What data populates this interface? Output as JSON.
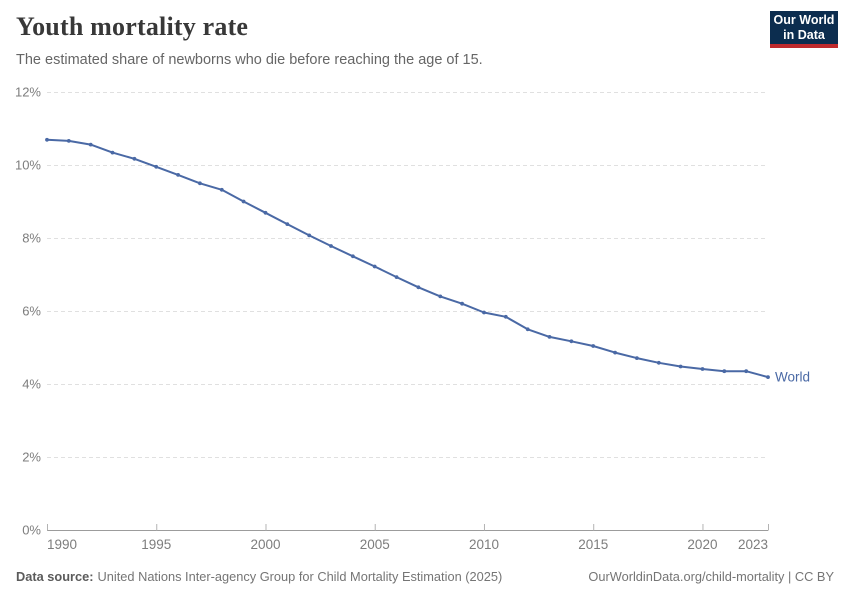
{
  "header": {
    "title": "Youth mortality rate",
    "subtitle": "The estimated share of newborns who die before reaching the age of 15."
  },
  "logo": {
    "line1": "Our World",
    "line2": "in Data",
    "bg_color": "#0c2d4f",
    "accent_color": "#bf2a2d"
  },
  "chart_data": {
    "type": "line",
    "title": "Youth mortality rate",
    "subtitle": "The estimated share of newborns who die before reaching the age of 15.",
    "x": [
      1990,
      1991,
      1992,
      1993,
      1994,
      1995,
      1996,
      1997,
      1998,
      1999,
      2000,
      2001,
      2002,
      2003,
      2004,
      2005,
      2006,
      2007,
      2008,
      2009,
      2010,
      2011,
      2012,
      2013,
      2014,
      2015,
      2016,
      2017,
      2018,
      2019,
      2020,
      2021,
      2022,
      2023
    ],
    "series": [
      {
        "name": "World",
        "color": "#4a69a5",
        "values": [
          10.69,
          10.66,
          10.56,
          10.34,
          10.17,
          9.95,
          9.73,
          9.5,
          9.32,
          9.0,
          8.69,
          8.38,
          8.07,
          7.78,
          7.5,
          7.22,
          6.93,
          6.65,
          6.4,
          6.2,
          5.96,
          5.84,
          5.5,
          5.29,
          5.17,
          5.04,
          4.86,
          4.71,
          4.58,
          4.48,
          4.41,
          4.35,
          4.35,
          4.19
        ]
      }
    ],
    "end_label": "World",
    "x_ticks": [
      1990,
      1995,
      2000,
      2005,
      2010,
      2015,
      2020,
      2023
    ],
    "y_ticks": [
      0,
      2,
      4,
      6,
      8,
      10,
      12
    ],
    "y_tick_suffix": "%",
    "xlim": [
      1990,
      2023
    ],
    "ylim": [
      0,
      12
    ],
    "grid": "horizontal-dashed",
    "legend_position": "end-of-line"
  },
  "footer": {
    "source_label": "Data source:",
    "source_text": "United Nations Inter-agency Group for Child Mortality Estimation (2025)",
    "credit": "OurWorldinData.org/child-mortality | CC BY"
  },
  "colors": {
    "line": "#4a69a5",
    "grid": "#e0e0e0",
    "axis_line": "#9c9c9c",
    "axis_tick": "#b3b3b3",
    "tick_label": "#7d7d7d",
    "title": "#383838",
    "subtitle": "#666666",
    "footer": "#757575"
  }
}
